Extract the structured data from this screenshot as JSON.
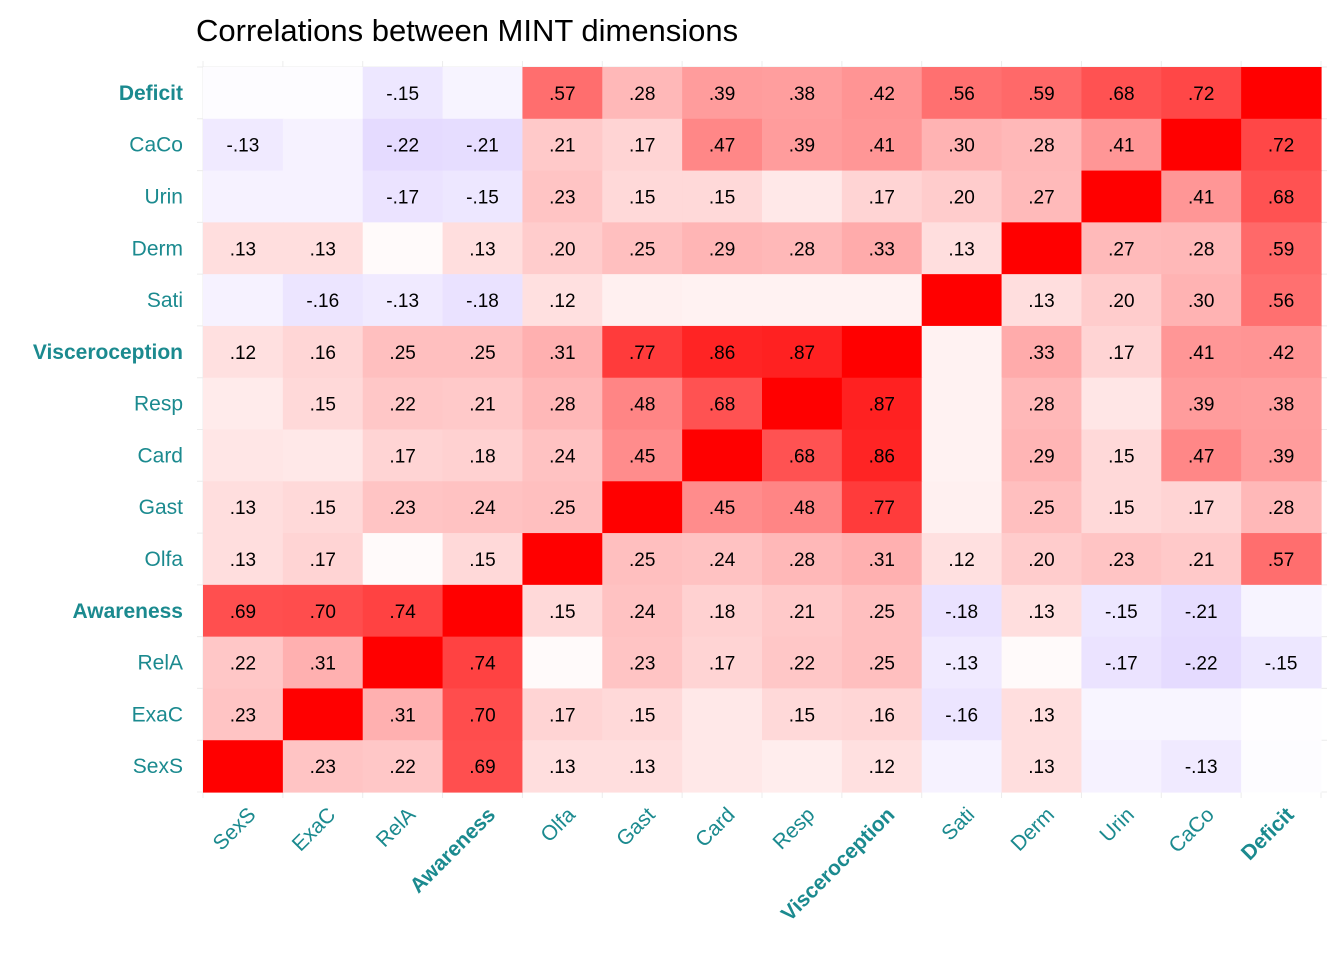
{
  "chart_data": {
    "type": "heatmap",
    "title": "Correlations between MINT dimensions",
    "x_categories": [
      "SexS",
      "ExaC",
      "RelA",
      "Awareness",
      "Olfa",
      "Gast",
      "Card",
      "Resp",
      "Visceroception",
      "Sati",
      "Derm",
      "Urin",
      "CaCo",
      "Deficit"
    ],
    "y_categories_top_to_bottom": [
      "Deficit",
      "CaCo",
      "Urin",
      "Derm",
      "Sati",
      "Visceroception",
      "Resp",
      "Card",
      "Gast",
      "Olfa",
      "Awareness",
      "RelA",
      "ExaC",
      "SexS"
    ],
    "bold_categories": [
      "Awareness",
      "Visceroception",
      "Deficit"
    ],
    "value_range": [
      -1,
      1
    ],
    "label_threshold_abs": 0.12,
    "diagonal_label": "",
    "colors": {
      "positive": "#ff0000",
      "negative": "#8a5cff",
      "zero": "#ffffff",
      "axis_text": "#1b8a8f"
    },
    "matrix": [
      [
        1.0,
        0.23,
        0.22,
        0.69,
        0.13,
        0.13,
        0.09,
        0.07,
        0.12,
        -0.08,
        0.13,
        -0.08,
        -0.13,
        -0.02
      ],
      [
        0.23,
        1.0,
        0.31,
        0.7,
        0.17,
        0.15,
        0.09,
        0.15,
        0.16,
        -0.16,
        0.13,
        -0.06,
        -0.06,
        -0.01
      ],
      [
        0.22,
        0.31,
        1.0,
        0.74,
        0.02,
        0.23,
        0.17,
        0.22,
        0.25,
        -0.13,
        0.02,
        -0.17,
        -0.22,
        -0.15
      ],
      [
        0.69,
        0.7,
        0.74,
        1.0,
        0.15,
        0.24,
        0.18,
        0.21,
        0.25,
        -0.18,
        0.13,
        -0.15,
        -0.21,
        -0.07
      ],
      [
        0.13,
        0.17,
        0.02,
        0.15,
        1.0,
        0.25,
        0.24,
        0.28,
        0.31,
        0.12,
        0.2,
        0.23,
        0.21,
        0.57
      ],
      [
        0.13,
        0.15,
        0.23,
        0.24,
        0.25,
        1.0,
        0.45,
        0.48,
        0.77,
        0.06,
        0.25,
        0.15,
        0.17,
        0.28
      ],
      [
        0.1,
        0.09,
        0.17,
        0.18,
        0.24,
        0.45,
        1.0,
        0.68,
        0.86,
        0.05,
        0.29,
        0.15,
        0.47,
        0.39
      ],
      [
        0.08,
        0.15,
        0.22,
        0.21,
        0.28,
        0.48,
        0.68,
        1.0,
        0.87,
        0.05,
        0.28,
        0.1,
        0.39,
        0.38
      ],
      [
        0.12,
        0.16,
        0.25,
        0.25,
        0.31,
        0.77,
        0.86,
        0.87,
        1.0,
        0.05,
        0.33,
        0.17,
        0.41,
        0.42
      ],
      [
        -0.08,
        -0.16,
        -0.13,
        -0.18,
        0.12,
        0.06,
        0.05,
        0.05,
        0.05,
        1.0,
        0.13,
        0.2,
        0.3,
        0.56
      ],
      [
        0.13,
        0.13,
        0.02,
        0.13,
        0.2,
        0.25,
        0.29,
        0.28,
        0.33,
        0.13,
        1.0,
        0.27,
        0.28,
        0.59
      ],
      [
        -0.08,
        -0.08,
        -0.17,
        -0.15,
        0.23,
        0.15,
        0.15,
        0.09,
        0.17,
        0.2,
        0.27,
        1.0,
        0.41,
        0.68
      ],
      [
        -0.13,
        -0.08,
        -0.22,
        -0.21,
        0.21,
        0.17,
        0.47,
        0.39,
        0.41,
        0.3,
        0.28,
        0.41,
        1.0,
        0.72
      ],
      [
        -0.02,
        -0.02,
        -0.15,
        -0.07,
        0.57,
        0.28,
        0.39,
        0.38,
        0.42,
        0.56,
        0.59,
        0.68,
        0.72,
        1.0
      ]
    ]
  }
}
